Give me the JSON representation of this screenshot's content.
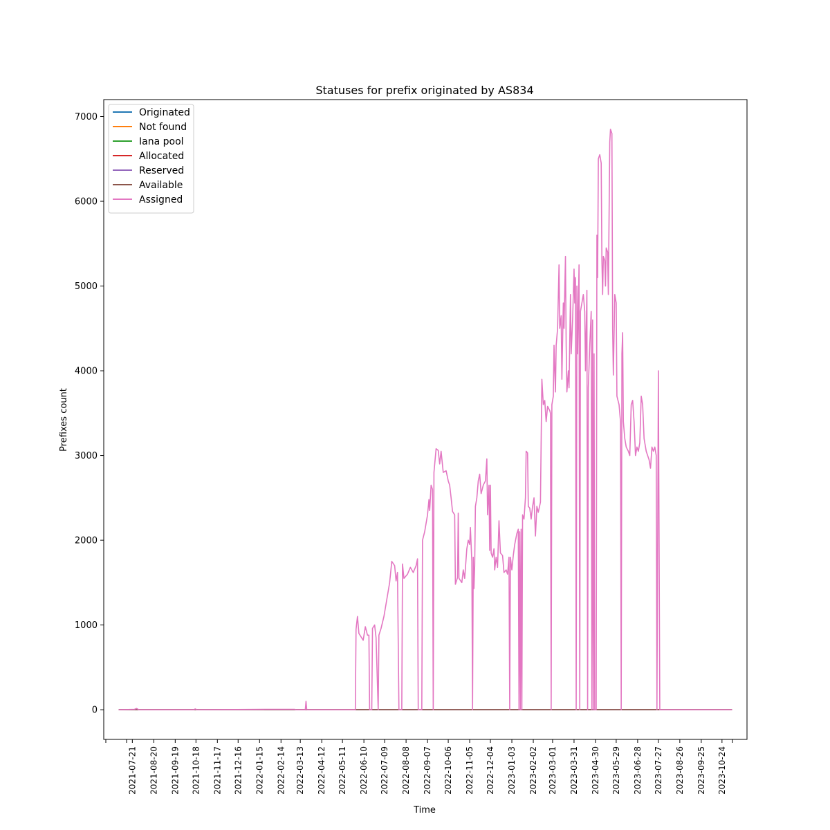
{
  "chart_data": {
    "type": "line",
    "title": "Statuses for prefix originated by AS834",
    "xlabel": "Time",
    "ylabel": "Prefixes count",
    "ylim": [
      -350,
      7200
    ],
    "xlim": [
      "2021-06-11",
      "2023-11-28"
    ],
    "y_ticks": [
      0,
      1000,
      2000,
      3000,
      4000,
      5000,
      6000,
      7000
    ],
    "x_ticks": [
      "2021-07-21",
      "2021-08-20",
      "2021-09-19",
      "2021-10-18",
      "2021-11-17",
      "2021-12-16",
      "2022-01-15",
      "2022-02-14",
      "2022-03-13",
      "2022-04-12",
      "2022-05-11",
      "2022-06-10",
      "2022-07-09",
      "2022-08-08",
      "2022-09-07",
      "2022-10-06",
      "2022-11-05",
      "2022-12-04",
      "2023-01-03",
      "2023-02-02",
      "2023-03-01",
      "2023-03-31",
      "2023-04-30",
      "2023-05-29",
      "2023-06-28",
      "2023-07-27",
      "2023-08-26",
      "2023-09-25",
      "2023-10-24"
    ],
    "grid": false,
    "legend_position": "top-left",
    "series": [
      {
        "name": "Originated",
        "color": "#1f77b4",
        "points": [
          [
            "2021-07-02",
            0
          ],
          [
            "2023-11-07",
            0
          ]
        ]
      },
      {
        "name": "Not found",
        "color": "#ff7f0e",
        "points": [
          [
            "2021-07-02",
            0
          ],
          [
            "2023-11-07",
            0
          ]
        ]
      },
      {
        "name": "Iana pool",
        "color": "#2ca02c",
        "points": [
          [
            "2021-07-02",
            0
          ],
          [
            "2023-11-07",
            0
          ]
        ]
      },
      {
        "name": "Allocated",
        "color": "#d62728",
        "points": [
          [
            "2021-07-02",
            0
          ],
          [
            "2023-11-07",
            0
          ]
        ]
      },
      {
        "name": "Reserved",
        "color": "#9467bd",
        "points": [
          [
            "2021-07-02",
            0
          ],
          [
            "2023-11-07",
            0
          ]
        ]
      },
      {
        "name": "Available",
        "color": "#8c564b",
        "points": [
          [
            "2021-07-02",
            0
          ],
          [
            "2023-11-07",
            0
          ]
        ]
      },
      {
        "name": "Assigned",
        "color": "#e377c2",
        "points": [
          [
            "2021-07-02",
            0
          ],
          [
            "2021-07-24",
            5
          ],
          [
            "2021-07-27",
            15
          ],
          [
            "2021-07-30",
            0
          ],
          [
            "2021-10-15",
            0
          ],
          [
            "2021-10-17",
            10
          ],
          [
            "2021-10-19",
            0
          ],
          [
            "2022-01-22",
            5
          ],
          [
            "2022-03-05",
            5
          ],
          [
            "2022-03-07",
            0
          ],
          [
            "2022-03-20",
            0
          ],
          [
            "2022-03-21",
            100
          ],
          [
            "2022-03-22",
            0
          ],
          [
            "2022-05-29",
            0
          ],
          [
            "2022-05-30",
            950
          ],
          [
            "2022-06-01",
            1100
          ],
          [
            "2022-06-03",
            900
          ],
          [
            "2022-06-06",
            860
          ],
          [
            "2022-06-09",
            820
          ],
          [
            "2022-06-12",
            980
          ],
          [
            "2022-06-15",
            880
          ],
          [
            "2022-06-17",
            880
          ],
          [
            "2022-06-18",
            0
          ],
          [
            "2022-06-21",
            0
          ],
          [
            "2022-06-22",
            960
          ],
          [
            "2022-06-25",
            1000
          ],
          [
            "2022-06-27",
            850
          ],
          [
            "2022-06-30",
            0
          ],
          [
            "2022-07-01",
            880
          ],
          [
            "2022-07-04",
            960
          ],
          [
            "2022-07-08",
            1100
          ],
          [
            "2022-07-12",
            1300
          ],
          [
            "2022-07-16",
            1500
          ],
          [
            "2022-07-19",
            1750
          ],
          [
            "2022-07-23",
            1700
          ],
          [
            "2022-07-25",
            1520
          ],
          [
            "2022-07-27",
            1620
          ],
          [
            "2022-07-29",
            0
          ],
          [
            "2022-08-02",
            0
          ],
          [
            "2022-08-03",
            1720
          ],
          [
            "2022-08-05",
            1550
          ],
          [
            "2022-08-10",
            1600
          ],
          [
            "2022-08-14",
            1680
          ],
          [
            "2022-08-18",
            1620
          ],
          [
            "2022-08-22",
            1700
          ],
          [
            "2022-08-24",
            1780
          ],
          [
            "2022-08-25",
            0
          ],
          [
            "2022-08-30",
            0
          ],
          [
            "2022-08-31",
            2000
          ],
          [
            "2022-09-03",
            2100
          ],
          [
            "2022-09-07",
            2300
          ],
          [
            "2022-09-09",
            2480
          ],
          [
            "2022-09-10",
            2350
          ],
          [
            "2022-09-12",
            2650
          ],
          [
            "2022-09-14",
            2600
          ],
          [
            "2022-09-15",
            0
          ],
          [
            "2022-09-16",
            2800
          ],
          [
            "2022-09-19",
            3080
          ],
          [
            "2022-09-22",
            3060
          ],
          [
            "2022-09-24",
            2900
          ],
          [
            "2022-09-26",
            3050
          ],
          [
            "2022-09-29",
            2800
          ],
          [
            "2022-10-03",
            2820
          ],
          [
            "2022-10-06",
            2700
          ],
          [
            "2022-10-08",
            2650
          ],
          [
            "2022-10-10",
            2500
          ],
          [
            "2022-10-12",
            2340
          ],
          [
            "2022-10-15",
            2300
          ],
          [
            "2022-10-16",
            1480
          ],
          [
            "2022-10-19",
            1560
          ],
          [
            "2022-10-20",
            2320
          ],
          [
            "2022-10-21",
            1550
          ],
          [
            "2022-10-25",
            1500
          ],
          [
            "2022-10-27",
            1650
          ],
          [
            "2022-10-29",
            1550
          ],
          [
            "2022-11-01",
            1900
          ],
          [
            "2022-11-03",
            2000
          ],
          [
            "2022-11-05",
            1950
          ],
          [
            "2022-11-06",
            2150
          ],
          [
            "2022-11-08",
            1750
          ],
          [
            "2022-11-09",
            0
          ],
          [
            "2022-11-10",
            1800
          ],
          [
            "2022-11-11",
            1430
          ],
          [
            "2022-11-12",
            1700
          ],
          [
            "2022-11-13",
            2400
          ],
          [
            "2022-11-15",
            2500
          ],
          [
            "2022-11-17",
            2700
          ],
          [
            "2022-11-19",
            2780
          ],
          [
            "2022-11-21",
            2550
          ],
          [
            "2022-11-24",
            2650
          ],
          [
            "2022-11-27",
            2700
          ],
          [
            "2022-11-29",
            2960
          ],
          [
            "2022-11-30",
            2300
          ],
          [
            "2022-12-02",
            2650
          ],
          [
            "2022-12-03",
            1880
          ],
          [
            "2022-12-04",
            2650
          ],
          [
            "2022-12-05",
            1850
          ],
          [
            "2022-12-07",
            1800
          ],
          [
            "2022-12-09",
            1900
          ],
          [
            "2022-12-10",
            1650
          ],
          [
            "2022-12-12",
            1800
          ],
          [
            "2022-12-14",
            1680
          ],
          [
            "2022-12-16",
            2230
          ],
          [
            "2022-12-18",
            1850
          ],
          [
            "2022-12-21",
            1820
          ],
          [
            "2022-12-23",
            1620
          ],
          [
            "2022-12-26",
            1650
          ],
          [
            "2022-12-28",
            1600
          ],
          [
            "2022-12-30",
            1800
          ],
          [
            "2022-12-31",
            0
          ],
          [
            "2023-01-01",
            1800
          ],
          [
            "2023-01-03",
            1650
          ],
          [
            "2023-01-05",
            1820
          ],
          [
            "2023-01-07",
            1950
          ],
          [
            "2023-01-10",
            2080
          ],
          [
            "2023-01-12",
            2130
          ],
          [
            "2023-01-13",
            0
          ],
          [
            "2023-01-14",
            2100
          ],
          [
            "2023-01-15",
            0
          ],
          [
            "2023-01-16",
            2130
          ],
          [
            "2023-01-17",
            0
          ],
          [
            "2023-01-18",
            2300
          ],
          [
            "2023-01-20",
            2250
          ],
          [
            "2023-01-22",
            2500
          ],
          [
            "2023-01-23",
            3050
          ],
          [
            "2023-01-25",
            3030
          ],
          [
            "2023-01-26",
            2400
          ],
          [
            "2023-01-28",
            2380
          ],
          [
            "2023-01-30",
            2250
          ],
          [
            "2023-02-01",
            2400
          ],
          [
            "2023-02-03",
            2500
          ],
          [
            "2023-02-05",
            2050
          ],
          [
            "2023-02-07",
            2400
          ],
          [
            "2023-02-09",
            2330
          ],
          [
            "2023-02-12",
            2450
          ],
          [
            "2023-02-14",
            3900
          ],
          [
            "2023-02-16",
            3600
          ],
          [
            "2023-02-18",
            3650
          ],
          [
            "2023-02-20",
            3400
          ],
          [
            "2023-02-22",
            3580
          ],
          [
            "2023-02-25",
            3530
          ],
          [
            "2023-02-26",
            3500
          ],
          [
            "2023-02-27",
            0
          ],
          [
            "2023-02-28",
            3600
          ],
          [
            "2023-03-02",
            3700
          ],
          [
            "2023-03-03",
            4300
          ],
          [
            "2023-03-05",
            3750
          ],
          [
            "2023-03-06",
            4300
          ],
          [
            "2023-03-08",
            4500
          ],
          [
            "2023-03-10",
            5250
          ],
          [
            "2023-03-11",
            4500
          ],
          [
            "2023-03-13",
            4650
          ],
          [
            "2023-03-14",
            3900
          ],
          [
            "2023-03-16",
            4800
          ],
          [
            "2023-03-17",
            4500
          ],
          [
            "2023-03-19",
            5350
          ],
          [
            "2023-03-20",
            4300
          ],
          [
            "2023-03-21",
            3750
          ],
          [
            "2023-03-23",
            4000
          ],
          [
            "2023-03-24",
            3800
          ],
          [
            "2023-03-26",
            4900
          ],
          [
            "2023-03-27",
            4200
          ],
          [
            "2023-03-29",
            4600
          ],
          [
            "2023-03-31",
            5200
          ],
          [
            "2023-04-01",
            4800
          ],
          [
            "2023-04-02",
            5100
          ],
          [
            "2023-04-03",
            0
          ],
          [
            "2023-04-04",
            5000
          ],
          [
            "2023-04-05",
            4200
          ],
          [
            "2023-04-07",
            5250
          ],
          [
            "2023-04-08",
            0
          ],
          [
            "2023-04-09",
            4700
          ],
          [
            "2023-04-11",
            4800
          ],
          [
            "2023-04-13",
            4900
          ],
          [
            "2023-04-15",
            4700
          ],
          [
            "2023-04-16",
            4000
          ],
          [
            "2023-04-18",
            4950
          ],
          [
            "2023-04-19",
            0
          ],
          [
            "2023-04-20",
            3800
          ],
          [
            "2023-04-22",
            4300
          ],
          [
            "2023-04-24",
            4700
          ],
          [
            "2023-04-25",
            0
          ],
          [
            "2023-04-26",
            4600
          ],
          [
            "2023-04-27",
            0
          ],
          [
            "2023-04-28",
            4200
          ],
          [
            "2023-04-29",
            0
          ],
          [
            "2023-05-01",
            0
          ],
          [
            "2023-05-02",
            5600
          ],
          [
            "2023-05-03",
            5100
          ],
          [
            "2023-05-04",
            6500
          ],
          [
            "2023-05-06",
            6550
          ],
          [
            "2023-05-08",
            6450
          ],
          [
            "2023-05-09",
            5300
          ],
          [
            "2023-05-10",
            4900
          ],
          [
            "2023-05-11",
            5350
          ],
          [
            "2023-05-13",
            5300
          ],
          [
            "2023-05-14",
            5000
          ],
          [
            "2023-05-15",
            5450
          ],
          [
            "2023-05-17",
            5400
          ],
          [
            "2023-05-18",
            4900
          ],
          [
            "2023-05-20",
            6700
          ],
          [
            "2023-05-21",
            6850
          ],
          [
            "2023-05-23",
            6800
          ],
          [
            "2023-05-24",
            4500
          ],
          [
            "2023-05-25",
            3950
          ],
          [
            "2023-05-27",
            4900
          ],
          [
            "2023-05-29",
            4800
          ],
          [
            "2023-05-30",
            3700
          ],
          [
            "2023-06-02",
            3600
          ],
          [
            "2023-06-04",
            3400
          ],
          [
            "2023-06-05",
            0
          ],
          [
            "2023-06-06",
            4200
          ],
          [
            "2023-06-07",
            4450
          ],
          [
            "2023-06-08",
            3400
          ],
          [
            "2023-06-10",
            3200
          ],
          [
            "2023-06-12",
            3100
          ],
          [
            "2023-06-15",
            3050
          ],
          [
            "2023-06-17",
            3000
          ],
          [
            "2023-06-19",
            3600
          ],
          [
            "2023-06-21",
            3650
          ],
          [
            "2023-06-23",
            3400
          ],
          [
            "2023-06-25",
            3000
          ],
          [
            "2023-06-27",
            3100
          ],
          [
            "2023-06-29",
            3050
          ],
          [
            "2023-07-01",
            3150
          ],
          [
            "2023-07-03",
            3700
          ],
          [
            "2023-07-05",
            3600
          ],
          [
            "2023-07-07",
            3200
          ],
          [
            "2023-07-10",
            3050
          ],
          [
            "2023-07-12",
            3000
          ],
          [
            "2023-07-14",
            2950
          ],
          [
            "2023-07-16",
            2850
          ],
          [
            "2023-07-18",
            3100
          ],
          [
            "2023-07-20",
            3050
          ],
          [
            "2023-07-22",
            3100
          ],
          [
            "2023-07-24",
            3000
          ],
          [
            "2023-07-25",
            0
          ],
          [
            "2023-07-27",
            4000
          ],
          [
            "2023-07-29",
            0
          ],
          [
            "2023-11-07",
            0
          ]
        ]
      }
    ]
  }
}
